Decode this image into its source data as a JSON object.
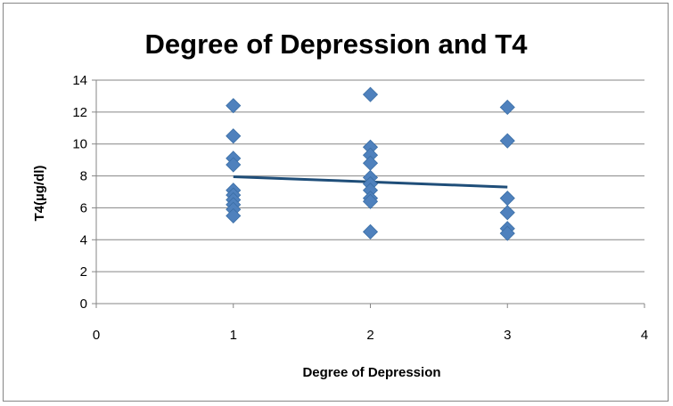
{
  "chart_data": {
    "type": "scatter",
    "title": "Degree of Depression and T4",
    "xlabel": "Degree of Depression",
    "ylabel": "T4(µg/dl)",
    "xlim": [
      0,
      4
    ],
    "ylim": [
      0,
      14
    ],
    "x_ticks": [
      0,
      1,
      2,
      3,
      4
    ],
    "y_ticks": [
      0,
      2,
      4,
      6,
      8,
      10,
      12,
      14
    ],
    "grid": "horizontal",
    "legend": "none",
    "series": [
      {
        "marker": "diamond",
        "color": "#4f81bd",
        "points": [
          [
            1,
            12.4
          ],
          [
            1,
            10.5
          ],
          [
            1,
            9.1
          ],
          [
            1,
            8.7
          ],
          [
            1,
            7.1
          ],
          [
            1,
            6.8
          ],
          [
            1,
            6.5
          ],
          [
            1,
            6.2
          ],
          [
            1,
            5.9
          ],
          [
            1,
            5.5
          ],
          [
            2,
            13.1
          ],
          [
            2,
            9.8
          ],
          [
            2,
            9.3
          ],
          [
            2,
            8.8
          ],
          [
            2,
            7.9
          ],
          [
            2,
            7.5
          ],
          [
            2,
            7.1
          ],
          [
            2,
            6.6
          ],
          [
            2,
            6.4
          ],
          [
            2,
            4.5
          ],
          [
            3,
            12.3
          ],
          [
            3,
            10.2
          ],
          [
            3,
            6.6
          ],
          [
            3,
            5.7
          ],
          [
            3,
            4.7
          ],
          [
            3,
            4.4
          ]
        ]
      }
    ],
    "trendline": {
      "type": "linear",
      "color": "#1f4e79",
      "x": [
        1,
        3
      ],
      "y": [
        7.95,
        7.3
      ]
    }
  }
}
